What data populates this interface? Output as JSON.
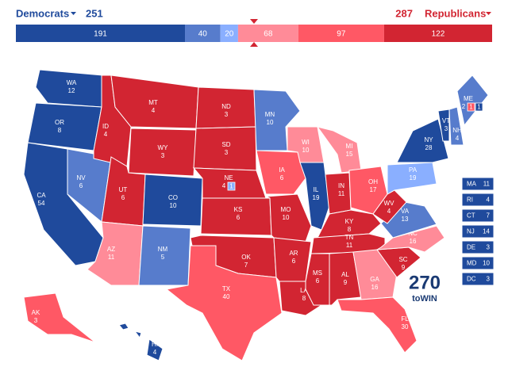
{
  "header": {
    "democrats": {
      "label": "Democrats",
      "total": 251,
      "color": "#1f4a9c"
    },
    "republicans": {
      "label": "Republicans",
      "total": 287,
      "color": "#d22532"
    }
  },
  "bar": {
    "segments": [
      {
        "value": 191,
        "color": "#1f4a9c"
      },
      {
        "value": 40,
        "color": "#577ccc"
      },
      {
        "value": 20,
        "color": "#8aafff"
      },
      {
        "value": 68,
        "color": "#ff8b98"
      },
      {
        "value": 97,
        "color": "#ff5865"
      },
      {
        "value": 122,
        "color": "#d22532"
      }
    ]
  },
  "states": [
    {
      "abbr": "WA",
      "votes": 12,
      "color": "#1f4a9c"
    },
    {
      "abbr": "OR",
      "votes": 8,
      "color": "#1f4a9c"
    },
    {
      "abbr": "CA",
      "votes": 54,
      "color": "#1f4a9c"
    },
    {
      "abbr": "NV",
      "votes": 6,
      "color": "#577ccc"
    },
    {
      "abbr": "ID",
      "votes": 4,
      "color": "#d22532"
    },
    {
      "abbr": "MT",
      "votes": 4,
      "color": "#d22532"
    },
    {
      "abbr": "WY",
      "votes": 3,
      "color": "#d22532"
    },
    {
      "abbr": "UT",
      "votes": 6,
      "color": "#d22532"
    },
    {
      "abbr": "CO",
      "votes": 10,
      "color": "#1f4a9c"
    },
    {
      "abbr": "AZ",
      "votes": 11,
      "color": "#ff8b98"
    },
    {
      "abbr": "NM",
      "votes": 5,
      "color": "#577ccc"
    },
    {
      "abbr": "ND",
      "votes": 3,
      "color": "#d22532"
    },
    {
      "abbr": "SD",
      "votes": 3,
      "color": "#d22532"
    },
    {
      "abbr": "NE",
      "votes": 4,
      "color": "#d22532",
      "districts": [
        {
          "votes": 1,
          "color": "#8aafff"
        }
      ]
    },
    {
      "abbr": "KS",
      "votes": 6,
      "color": "#d22532"
    },
    {
      "abbr": "OK",
      "votes": 7,
      "color": "#d22532"
    },
    {
      "abbr": "TX",
      "votes": 40,
      "color": "#ff5865"
    },
    {
      "abbr": "MN",
      "votes": 10,
      "color": "#577ccc"
    },
    {
      "abbr": "IA",
      "votes": 6,
      "color": "#ff5865"
    },
    {
      "abbr": "MO",
      "votes": 10,
      "color": "#d22532"
    },
    {
      "abbr": "AR",
      "votes": 6,
      "color": "#d22532"
    },
    {
      "abbr": "LA",
      "votes": 8,
      "color": "#d22532"
    },
    {
      "abbr": "WI",
      "votes": 10,
      "color": "#ff8b98"
    },
    {
      "abbr": "IL",
      "votes": 19,
      "color": "#1f4a9c"
    },
    {
      "abbr": "MI",
      "votes": 15,
      "color": "#ff8b98"
    },
    {
      "abbr": "IN",
      "votes": 11,
      "color": "#d22532"
    },
    {
      "abbr": "OH",
      "votes": 17,
      "color": "#ff5865"
    },
    {
      "abbr": "KY",
      "votes": 8,
      "color": "#d22532"
    },
    {
      "abbr": "TN",
      "votes": 11,
      "color": "#d22532"
    },
    {
      "abbr": "MS",
      "votes": 6,
      "color": "#d22532"
    },
    {
      "abbr": "AL",
      "votes": 9,
      "color": "#d22532"
    },
    {
      "abbr": "GA",
      "votes": 16,
      "color": "#ff8b98"
    },
    {
      "abbr": "FL",
      "votes": 30,
      "color": "#ff5865"
    },
    {
      "abbr": "SC",
      "votes": 9,
      "color": "#d22532"
    },
    {
      "abbr": "NC",
      "votes": 16,
      "color": "#ff8b98"
    },
    {
      "abbr": "VA",
      "votes": 13,
      "color": "#577ccc"
    },
    {
      "abbr": "WV",
      "votes": 4,
      "color": "#d22532"
    },
    {
      "abbr": "PA",
      "votes": 19,
      "color": "#8aafff"
    },
    {
      "abbr": "NY",
      "votes": 28,
      "color": "#1f4a9c"
    },
    {
      "abbr": "VT",
      "votes": 3,
      "color": "#1f4a9c"
    },
    {
      "abbr": "NH",
      "votes": 4,
      "color": "#577ccc"
    },
    {
      "abbr": "ME",
      "votes": 2,
      "color": "#577ccc",
      "districts": [
        {
          "votes": 1,
          "color": "#ff5865"
        },
        {
          "votes": 1,
          "color": "#1f4a9c"
        }
      ]
    },
    {
      "abbr": "AK",
      "votes": 3,
      "color": "#ff5865"
    },
    {
      "abbr": "HI",
      "votes": 4,
      "color": "#1f4a9c"
    }
  ],
  "small_states": {
    "color": "#1f4a9c",
    "items": [
      {
        "abbr": "MA",
        "votes": 11
      },
      {
        "abbr": "RI",
        "votes": 4
      },
      {
        "abbr": "CT",
        "votes": 7
      },
      {
        "abbr": "NJ",
        "votes": 14
      },
      {
        "abbr": "DE",
        "votes": 3
      },
      {
        "abbr": "MD",
        "votes": 10
      },
      {
        "abbr": "DC",
        "votes": 3
      }
    ]
  },
  "logo": {
    "number": "270",
    "text": "toWIN"
  }
}
